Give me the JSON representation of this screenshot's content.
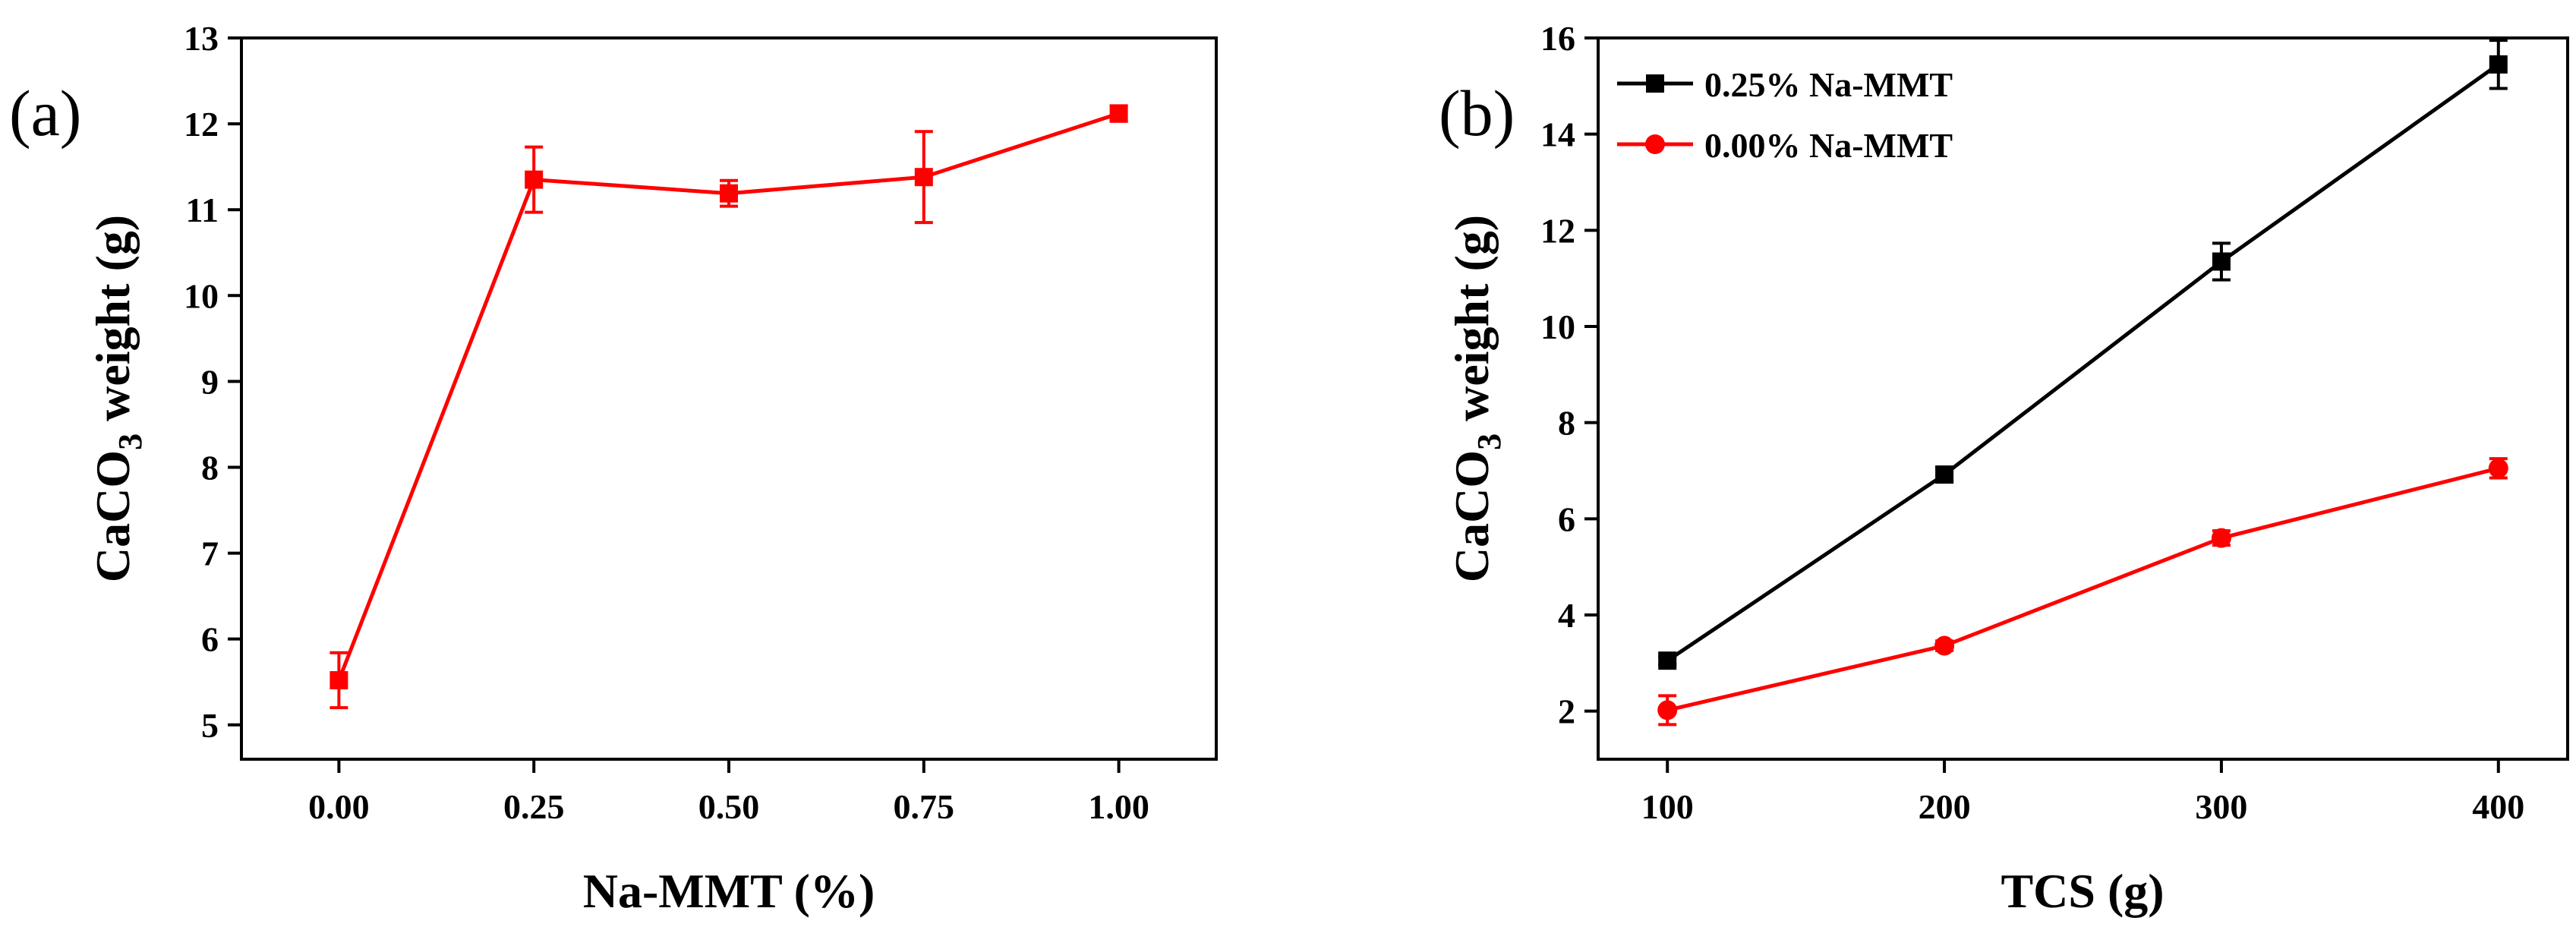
{
  "chart_data": [
    {
      "panel_label": "(a)",
      "type": "line",
      "xlabel": "Na-MMT (%)",
      "ylabel_main": "CaCO",
      "ylabel_sub": "3",
      "ylabel_tail": " weight (g)",
      "xlim": [
        -0.125,
        1.125
      ],
      "ylim": [
        4.6,
        13
      ],
      "x_ticks": [
        0.0,
        0.25,
        0.5,
        0.75,
        1.0
      ],
      "x_tick_labels": [
        "0.00",
        "0.25",
        "0.50",
        "0.75",
        "1.00"
      ],
      "y_ticks": [
        5,
        6,
        7,
        8,
        9,
        10,
        11,
        12,
        13
      ],
      "y_tick_labels": [
        "5",
        "6",
        "7",
        "8",
        "9",
        "10",
        "11",
        "12",
        "13"
      ],
      "series": [
        {
          "name": "",
          "color": "#ff0000",
          "marker": "square",
          "x": [
            0.0,
            0.25,
            0.5,
            0.75,
            1.0
          ],
          "y": [
            5.52,
            11.35,
            11.19,
            11.38,
            12.12
          ],
          "err": [
            0.32,
            0.38,
            0.15,
            0.53,
            0.09
          ]
        }
      ]
    },
    {
      "panel_label": "(b)",
      "type": "line",
      "xlabel": "TCS (g)",
      "ylabel_main": "CaCO",
      "ylabel_sub": "3",
      "ylabel_tail": " weight (g)",
      "xlim": [
        75,
        425
      ],
      "ylim": [
        1.0,
        16
      ],
      "x_ticks": [
        100,
        200,
        300,
        400
      ],
      "x_tick_labels": [
        "100",
        "200",
        "300",
        "400"
      ],
      "y_ticks": [
        2,
        4,
        6,
        8,
        10,
        12,
        14,
        16
      ],
      "y_tick_labels": [
        "2",
        "4",
        "6",
        "8",
        "10",
        "12",
        "14",
        "16"
      ],
      "legend_position": "top-left",
      "series": [
        {
          "name": "0.25% Na-MMT",
          "color": "#000000",
          "marker": "square",
          "x": [
            100,
            200,
            300,
            400
          ],
          "y": [
            3.05,
            6.92,
            11.35,
            15.45
          ],
          "err": [
            0.08,
            0.15,
            0.38,
            0.5
          ]
        },
        {
          "name": "0.00% Na-MMT",
          "color": "#ff0000",
          "marker": "circle",
          "x": [
            100,
            200,
            300,
            400
          ],
          "y": [
            2.02,
            3.36,
            5.6,
            7.05
          ],
          "err": [
            0.3,
            0.1,
            0.15,
            0.2
          ]
        }
      ]
    }
  ]
}
